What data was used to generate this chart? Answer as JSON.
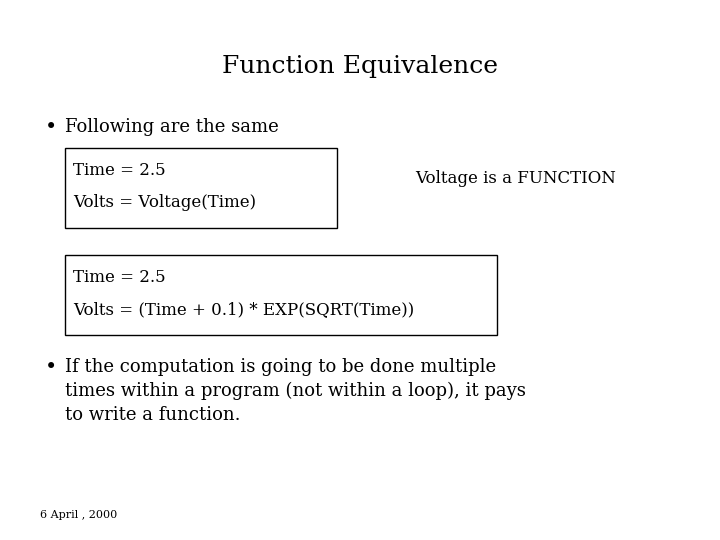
{
  "title": "Function Equivalence",
  "title_fontsize": 18,
  "title_font": "serif",
  "bg_color": "#ffffff",
  "text_color": "#000000",
  "bullet1": "Following are the same",
  "box1_line1": "Time = 2.5",
  "box1_line2": "Volts = Voltage(Time)",
  "box1_note": "Voltage is a FUNCTION",
  "box2_line1": "Time = 2.5",
  "box2_line2": "Volts = (Time + 0.1) * EXP(SQRT(Time))",
  "bullet2_line1": "If the computation is going to be done multiple",
  "bullet2_line2": "times within a program (not within a loop), it pays",
  "bullet2_line3": "to write a function.",
  "footer": "6 April , 2000",
  "body_fontsize": 13,
  "code_fontsize": 12,
  "footer_fontsize": 8
}
